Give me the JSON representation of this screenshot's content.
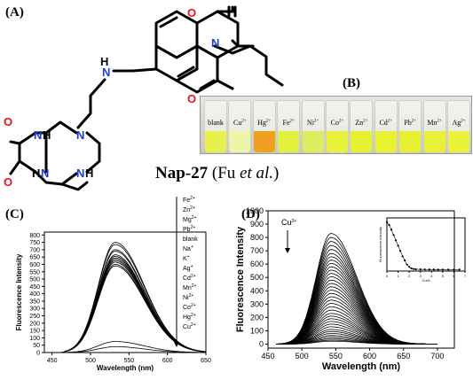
{
  "panels": {
    "a": "(A)",
    "b": "(B)",
    "c": "(C)",
    "d": "(D)"
  },
  "compound": {
    "name": "Nap-27",
    "ref_prefix": "(Fu ",
    "ref_italic": "et al.",
    "ref_suffix": ")"
  },
  "structure_atoms": {
    "o_top": "O",
    "n_imide": "N",
    "o_bottom": "O",
    "nh_link_h": "H",
    "nh_link_n": "N",
    "o_macro_top": "O",
    "o_macro_bottom": "O",
    "n_ring_1_n": "N",
    "n_ring_1_h": "H",
    "n_ring_2": "N",
    "n_ring_3_n": "N",
    "n_ring_3_h": "H",
    "n_ring_4_n": "N",
    "n_ring_4_h": "H"
  },
  "vials": [
    {
      "label": "blank",
      "color": "#e8f050"
    },
    {
      "label": "Cu2+",
      "color": "#eef4a8"
    },
    {
      "label": "Hg2+",
      "color": "#f0a020"
    },
    {
      "label": "Fe2+",
      "color": "#e4f040"
    },
    {
      "label": "Ni2+",
      "color": "#e0ec60"
    },
    {
      "label": "Co2+",
      "color": "#e8f23c"
    },
    {
      "label": "Zn2+",
      "color": "#e6f230"
    },
    {
      "label": "Cd2+",
      "color": "#e8f230"
    },
    {
      "label": "Pb2+",
      "color": "#e6f030"
    },
    {
      "label": "Mn2+",
      "color": "#e8f038"
    },
    {
      "label": "Ag2+",
      "color": "#eaf23a"
    }
  ],
  "chart_data": [
    {
      "panel": "(C)",
      "type": "line",
      "xlabel": "Wavelength (nm)",
      "ylabel": "Fluorescence Intensity",
      "xlim": [
        440,
        650
      ],
      "ylim": [
        0,
        820
      ],
      "xticks": [
        450,
        500,
        550,
        600,
        650
      ],
      "yticks": [
        0,
        50,
        100,
        150,
        200,
        250,
        300,
        350,
        400,
        450,
        500,
        550,
        600,
        650,
        700,
        750,
        800
      ],
      "legend": [
        "Fe2+",
        "Zn2+",
        "Mg2+",
        "Pb2+",
        "blank",
        "Na+",
        "K+",
        "Ag+",
        "Cd2+",
        "Mn2+",
        "Ni2+",
        "Co2+",
        "Hg2+",
        "Cu2+"
      ],
      "peak_x": 532,
      "series": [
        {
          "peak": 750
        },
        {
          "peak": 735
        },
        {
          "peak": 700
        },
        {
          "peak": 690
        },
        {
          "peak": 665
        },
        {
          "peak": 655
        },
        {
          "peak": 645
        },
        {
          "peak": 635
        },
        {
          "peak": 625
        },
        {
          "peak": 615
        },
        {
          "peak": 600
        },
        {
          "peak": 590
        },
        {
          "peak": 75
        },
        {
          "peak": 40
        }
      ]
    },
    {
      "panel": "(D)",
      "type": "line",
      "xlabel": "Wavelength (nm)",
      "ylabel": "Fluorescence Intensity",
      "xlim": [
        450,
        725
      ],
      "ylim": [
        -30,
        1000
      ],
      "xticks": [
        450,
        500,
        550,
        600,
        650,
        700
      ],
      "yticks": [
        0,
        100,
        200,
        300,
        400,
        500,
        600,
        700,
        800,
        900,
        1000
      ],
      "annotation": "Cu2+",
      "peak_x": 543,
      "series_peaks": [
        830,
        800,
        770,
        740,
        710,
        680,
        655,
        630,
        605,
        580,
        555,
        530,
        505,
        480,
        455,
        430,
        405,
        380,
        355,
        330,
        305,
        280,
        255,
        230,
        210,
        190,
        170,
        150,
        130,
        110,
        95,
        80,
        65,
        52,
        40,
        30,
        22
      ]
    },
    {
      "panel": "(D) inset",
      "type": "scatter",
      "xlabel": "Cu/H",
      "ylabel": "Fluorescence Intensity",
      "xticks": [
        0,
        1,
        2,
        3,
        4,
        5,
        6,
        7
      ],
      "x": [
        0,
        0.2,
        0.4,
        0.6,
        0.8,
        1.0,
        1.2,
        1.4,
        1.6,
        1.8,
        2.0,
        2.2,
        2.4,
        2.6,
        3.0,
        3.4,
        3.8,
        4.2,
        4.6,
        5.0,
        5.5,
        6.0,
        6.5
      ],
      "y": [
        830,
        780,
        700,
        610,
        520,
        430,
        340,
        250,
        180,
        110,
        70,
        45,
        35,
        30,
        28,
        27,
        26,
        26,
        25,
        25,
        25,
        25,
        25
      ]
    }
  ]
}
